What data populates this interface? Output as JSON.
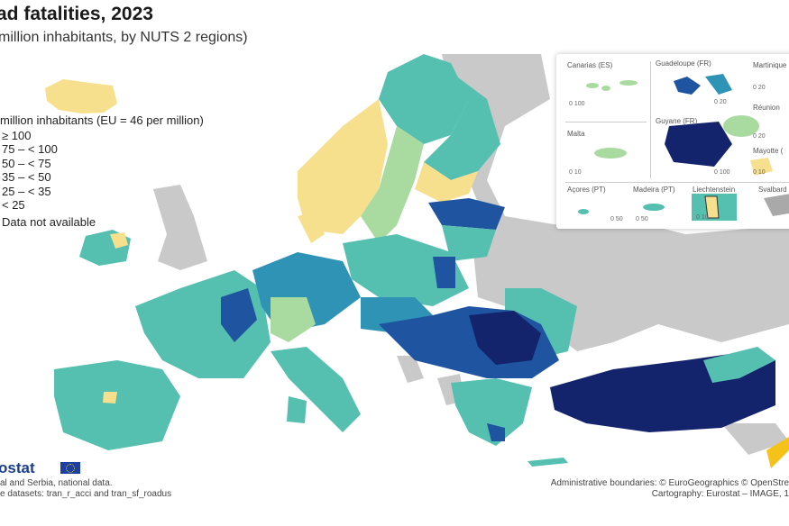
{
  "title": "ad fatalities, 2023",
  "subtitle": "million inhabitants, by NUTS 2 regions)",
  "legend": {
    "heading": "million inhabitants (EU = 46 per million)",
    "classes": [
      {
        "label": "≥ 100",
        "color": "#14246c"
      },
      {
        "label": "75 – < 100",
        "color": "#1f55a0"
      },
      {
        "label": "50 – < 75",
        "color": "#2f93b6"
      },
      {
        "label": "35 – < 50",
        "color": "#55bfb0"
      },
      {
        "label": "25 – < 35",
        "color": "#a9dba1"
      },
      {
        "label": "< 25",
        "color": "#f7e08d"
      }
    ],
    "na_label": "Data not available",
    "na_color": "#c4c4c4"
  },
  "insets": {
    "canarias": {
      "label": "Canarias (ES)",
      "scale": "0  100"
    },
    "guadeloupe": {
      "label": "Guadeloupe (FR)",
      "scale": "0  20"
    },
    "martinique": {
      "label": "Martinique",
      "scale": "0  20"
    },
    "malta": {
      "label": "Malta",
      "scale": "0  10"
    },
    "guyane": {
      "label": "Guyane (FR)",
      "scale": "0  100"
    },
    "reunion": {
      "label": "Réunion",
      "scale": "0  20"
    },
    "mayotte": {
      "label": "Mayotte (",
      "scale": "0 10"
    },
    "acores": {
      "label": "Açores (PT)",
      "scale": "0  50"
    },
    "madeira": {
      "label": "Madeira (PT)",
      "scale": "0   50"
    },
    "liechtenstein": {
      "label": "Liechtenstein",
      "scale": "0  10"
    },
    "svalbard": {
      "label": "Svalbard"
    }
  },
  "footer": {
    "logo": "ostat",
    "source_line1": "al and Serbia, national data.",
    "source_line2": "e datasets: tran_r_acci and tran_sf_roadus",
    "credit_line1": "Administrative boundaries: © EuroGeographics © OpenStre",
    "credit_line2": "Cartography: Eurostat – IMAGE, 1"
  }
}
